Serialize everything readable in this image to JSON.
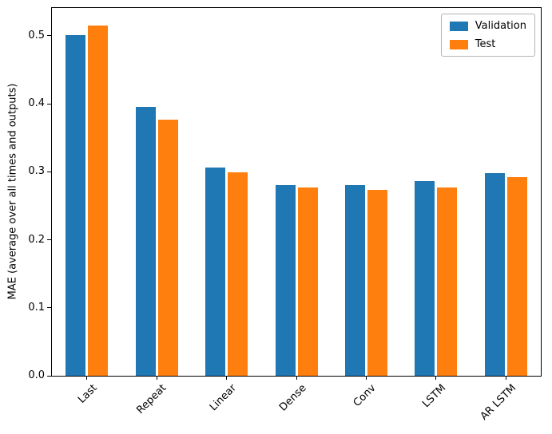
{
  "chart_data": {
    "type": "bar",
    "title": "",
    "xlabel": "",
    "ylabel": "MAE (average over all times and outputs)",
    "categories": [
      "Last",
      "Repeat",
      "Linear",
      "Dense",
      "Conv",
      "LSTM",
      "AR LSTM"
    ],
    "series": [
      {
        "name": "Validation",
        "color": "#1f77b4",
        "values": [
          0.501,
          0.395,
          0.306,
          0.28,
          0.28,
          0.286,
          0.298
        ]
      },
      {
        "name": "Test",
        "color": "#ff7f0e",
        "values": [
          0.515,
          0.377,
          0.299,
          0.277,
          0.274,
          0.277,
          0.292
        ]
      }
    ],
    "yticks": [
      0.0,
      0.1,
      0.2,
      0.3,
      0.4,
      0.5
    ],
    "ylim": [
      0,
      0.541
    ],
    "grid": false,
    "legend_position": "upper right"
  }
}
